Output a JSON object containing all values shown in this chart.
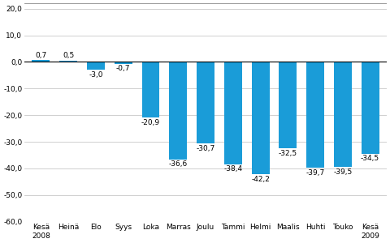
{
  "categories": [
    "Kesä\n2008",
    "Heinä",
    "Elo",
    "Syys",
    "Loka",
    "Marras",
    "Joulu",
    "Tammi",
    "Helmi",
    "Maalis",
    "Huhti",
    "Touko",
    "Kesä\n2009"
  ],
  "values": [
    0.7,
    0.5,
    -3.0,
    -0.7,
    -20.9,
    -36.6,
    -30.7,
    -38.4,
    -42.2,
    -32.5,
    -39.7,
    -39.5,
    -34.5
  ],
  "bar_color": "#1a9cd8",
  "ylim": [
    -60,
    22
  ],
  "yticks": [
    -60,
    -50,
    -40,
    -30,
    -20,
    -10,
    0.0,
    10,
    20
  ],
  "ytick_labels": [
    "-60,0",
    "-50,0",
    "-40,0",
    "-30,0",
    "-20,0",
    "-10,0",
    "0,0",
    "10,0",
    "20,0"
  ],
  "background_color": "#ffffff",
  "grid_color": "#c8c8c8",
  "label_fontsize": 6.5,
  "tick_fontsize": 6.5,
  "bar_width": 0.65
}
